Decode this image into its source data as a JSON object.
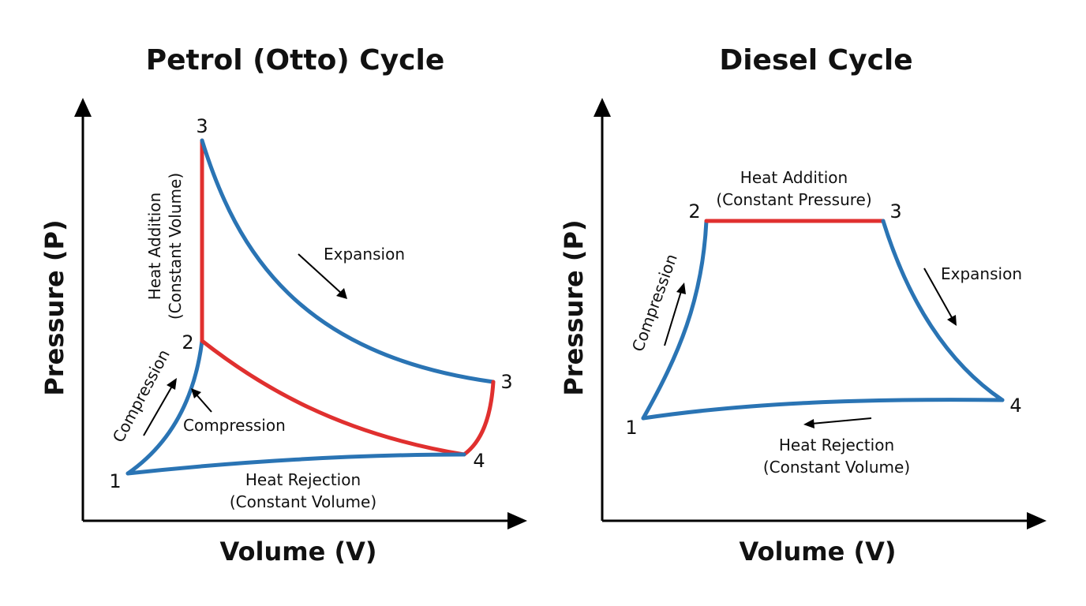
{
  "colors": {
    "process_blue": "#2a74b4",
    "heat_red": "#e0302f",
    "axis": "#000000"
  },
  "otto": {
    "title": "Petrol (Otto) Cycle",
    "y_axis_label": "Pressure (P)",
    "x_axis_label": "Volume (V)",
    "points": {
      "p1": "1",
      "p2": "2",
      "p3_top": "3",
      "p3_right": "3",
      "p4": "4"
    },
    "labels": {
      "heat_addition_line1": "Heat Addition",
      "heat_addition_line2": "(Constant Volume)",
      "expansion": "Expansion",
      "compression_rotated": "Compression",
      "compression": "Compression",
      "heat_rejection_line1": "Heat Rejection",
      "heat_rejection_line2": "(Constant Volume)"
    }
  },
  "diesel": {
    "title": "Diesel Cycle",
    "y_axis_label": "Pressure (P)",
    "x_axis_label": "Volume (V)",
    "points": {
      "p1": "1",
      "p2": "2",
      "p3": "3",
      "p4": "4"
    },
    "labels": {
      "heat_addition_line1": "Heat Addition",
      "heat_addition_line2": "(Constant Pressure)",
      "expansion": "Expansion",
      "compression": "Compression",
      "heat_rejection_line1": "Heat Rejection",
      "heat_rejection_line2": "(Constant Volume)"
    }
  }
}
